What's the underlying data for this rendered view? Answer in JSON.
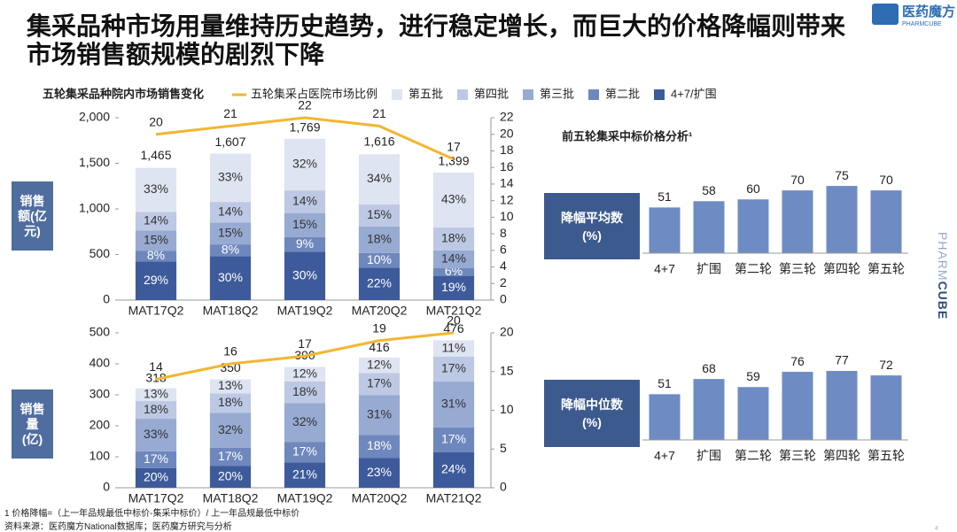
{
  "header": {
    "title": "集采品种市场用量维持历史趋势，进行稳定增长，而巨大的价格降幅则带来市场销售额规模的剧烈下降",
    "logo": "医药魔方",
    "logo_sub": "PHARMCUBE"
  },
  "side_brand": [
    "PHARM",
    "CUBE"
  ],
  "footnotes": [
    "1 价格降幅=（上一年品规最低中标价-集采中标价）/ 上一年品规最低中标价",
    "资料来源：医药魔方National数据库；医药魔方研究与分析"
  ],
  "page_number": "4",
  "chart_data": [
    {
      "type": "bar",
      "stacked": true,
      "title": "五轮集采品种院内市场销售变化",
      "ylabel": "销售额(亿元)",
      "categories": [
        "MAT17Q2",
        "MAT18Q2",
        "MAT19Q2",
        "MAT20Q2",
        "MAT21Q2"
      ],
      "series": [
        {
          "name": "4+7/扩围",
          "color": "#3d5b9b",
          "values": [
            29,
            30,
            30,
            22,
            19
          ],
          "value_labels": [
            "29%",
            "30%",
            "30%",
            "22%",
            "19%"
          ]
        },
        {
          "name": "第二批",
          "color": "#6e88bd",
          "values": [
            8,
            8,
            9,
            10,
            6
          ],
          "value_labels": [
            "8%",
            "8%",
            "9%",
            "10%",
            "6%"
          ]
        },
        {
          "name": "第三批",
          "color": "#97aad2",
          "values": [
            15,
            15,
            15,
            18,
            14
          ],
          "value_labels": [
            "15%",
            "15%",
            "15%",
            "18%",
            "14%"
          ]
        },
        {
          "name": "第四批",
          "color": "#bdc9e4",
          "values": [
            14,
            14,
            14,
            15,
            18
          ],
          "value_labels": [
            "14%",
            "14%",
            "14%",
            "15%",
            "18%"
          ]
        },
        {
          "name": "第五批",
          "color": "#dee4f1",
          "values": [
            33,
            33,
            32,
            34,
            43
          ],
          "value_labels": [
            "33%",
            "33%",
            "32%",
            "34%",
            "43%"
          ]
        },
        {
          "name": "五轮集采占医院市场比例",
          "type": "line",
          "axis": "y2",
          "color": "#f2b630",
          "values": [
            20,
            21,
            22,
            21,
            17
          ]
        }
      ],
      "totals": {
        "values": [
          1465,
          1607,
          1769,
          1616,
          1399
        ],
        "value_labels": [
          "1,465",
          "1,607",
          "1,769",
          "1,616",
          "1,399"
        ]
      },
      "ylim": [
        0,
        2000
      ],
      "yticks": [
        0,
        500,
        {
          "value": 1000,
          "label": "1,000"
        },
        {
          "value": 1500,
          "label": "1,500"
        },
        {
          "value": 2000,
          "label": "2,000"
        }
      ],
      "y2lim": [
        0,
        22
      ],
      "y2ticks": [
        0,
        2,
        4,
        6,
        8,
        10,
        12,
        14,
        16,
        18,
        20,
        22
      ]
    },
    {
      "type": "bar",
      "stacked": true,
      "ylabel": "销售量(亿)",
      "categories": [
        "MAT17Q2",
        "MAT18Q2",
        "MAT19Q2",
        "MAT20Q2",
        "MAT21Q2"
      ],
      "series": [
        {
          "color": "#3d5b9b",
          "values": [
            20,
            20,
            21,
            23,
            24
          ],
          "value_labels": [
            "20%",
            "20%",
            "21%",
            "23%",
            "24%"
          ]
        },
        {
          "color": "#6e88bd",
          "values": [
            17,
            17,
            17,
            18,
            17
          ],
          "value_labels": [
            "17%",
            "17%",
            "17%",
            "18%",
            "17%"
          ]
        },
        {
          "color": "#97aad2",
          "values": [
            33,
            32,
            32,
            31,
            31
          ],
          "value_labels": [
            "33%",
            "32%",
            "32%",
            "31%",
            "31%"
          ]
        },
        {
          "color": "#bdc9e4",
          "values": [
            18,
            18,
            18,
            17,
            17
          ],
          "value_labels": [
            "18%",
            "18%",
            "18%",
            "17%",
            "17%"
          ]
        },
        {
          "color": "#dee4f1",
          "values": [
            13,
            13,
            12,
            12,
            11
          ],
          "value_labels": [
            "13%",
            "13%",
            "12%",
            "12%",
            "11%"
          ]
        },
        {
          "type": "line",
          "axis": "y2",
          "color": "#f2b630",
          "values": [
            14,
            16,
            17,
            19,
            20
          ]
        }
      ],
      "totals": {
        "values": [
          318,
          350,
          390,
          416,
          476
        ]
      },
      "ylim": [
        0,
        500
      ],
      "yticks": [
        0,
        100,
        200,
        300,
        400,
        500
      ],
      "y2lim": [
        0,
        20
      ],
      "y2ticks": [
        0,
        5,
        10,
        15,
        20
      ]
    },
    {
      "type": "bar",
      "title": "前五轮集采中标价格分析¹",
      "ylabel": "降幅平均数(%)",
      "color": "#6f8bc4",
      "categories": [
        "4+7",
        "扩围",
        "第二轮",
        "第三轮",
        "第四轮",
        "第五轮"
      ],
      "values": [
        51,
        58,
        60,
        70,
        75,
        70
      ],
      "ylim": [
        0,
        80
      ]
    },
    {
      "type": "bar",
      "ylabel": "降幅中位数(%)",
      "color": "#6f8bc4",
      "categories": [
        "4+7",
        "扩围",
        "第二轮",
        "第三轮",
        "第四轮",
        "第五轮"
      ],
      "values": [
        51,
        68,
        59,
        76,
        77,
        72
      ],
      "ylim": [
        0,
        80
      ]
    }
  ]
}
